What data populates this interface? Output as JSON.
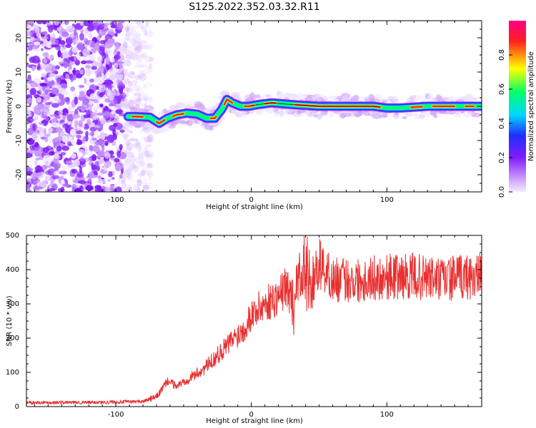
{
  "title": "S125.2022.352.03.32.R11",
  "chart_data": [
    {
      "type": "heatmap",
      "xlabel": "Height of straight line (km)",
      "ylabel": "Frequency (Hz)",
      "xlim": [
        -166,
        170
      ],
      "ylim": [
        -25,
        25
      ],
      "x_ticks": [
        -100,
        0,
        100
      ],
      "y_ticks": [
        -20,
        -10,
        0,
        10,
        20
      ],
      "colorbar": {
        "label": "Normalized spectral amplitude",
        "range": [
          0,
          1
        ],
        "ticks": [
          0.0,
          0.2,
          0.4,
          0.6,
          0.8
        ],
        "colors": [
          "#f4ecff",
          "#cc99ff",
          "#7f1dff",
          "#1f2fff",
          "#00d8ff",
          "#00ff6a",
          "#ffff00",
          "#ff2020",
          "#ff0088"
        ]
      },
      "ridge": {
        "x": [
          -91,
          -85,
          -75,
          -68,
          -62,
          -55,
          -48,
          -40,
          -33,
          -27,
          -22,
          -18,
          -14,
          -8,
          -2,
          5,
          15,
          30,
          50,
          70,
          90,
          100,
          110,
          130,
          150,
          168
        ],
        "y": [
          -3,
          -3,
          -3.2,
          -5,
          -3.5,
          -2.5,
          -2,
          -2.3,
          -3.5,
          -3.5,
          -1,
          2,
          1,
          0,
          0,
          0.5,
          1,
          0.5,
          0,
          0,
          0,
          -0.5,
          -0.5,
          0,
          0,
          0
        ]
      }
    },
    {
      "type": "line",
      "xlabel": "Height of straight line (km)",
      "ylabel": "SNR (10 * v/v)",
      "xlim": [
        -166,
        170
      ],
      "ylim": [
        0,
        500
      ],
      "x_ticks": [
        -100,
        0,
        100
      ],
      "y_ticks": [
        0,
        100,
        200,
        300,
        400,
        500
      ],
      "series_color": "#e83030",
      "envelope": {
        "x": [
          -166,
          -120,
          -80,
          -70,
          -62,
          -55,
          -45,
          -35,
          -25,
          -15,
          -5,
          0,
          10,
          20,
          25,
          30,
          35,
          40,
          45,
          50,
          60,
          80,
          100,
          120,
          140,
          160,
          170
        ],
        "y": [
          12,
          12,
          15,
          28,
          75,
          60,
          85,
          110,
          150,
          190,
          230,
          270,
          300,
          320,
          350,
          320,
          380,
          400,
          350,
          420,
          370,
          370,
          380,
          380,
          370,
          380,
          380
        ]
      }
    }
  ]
}
